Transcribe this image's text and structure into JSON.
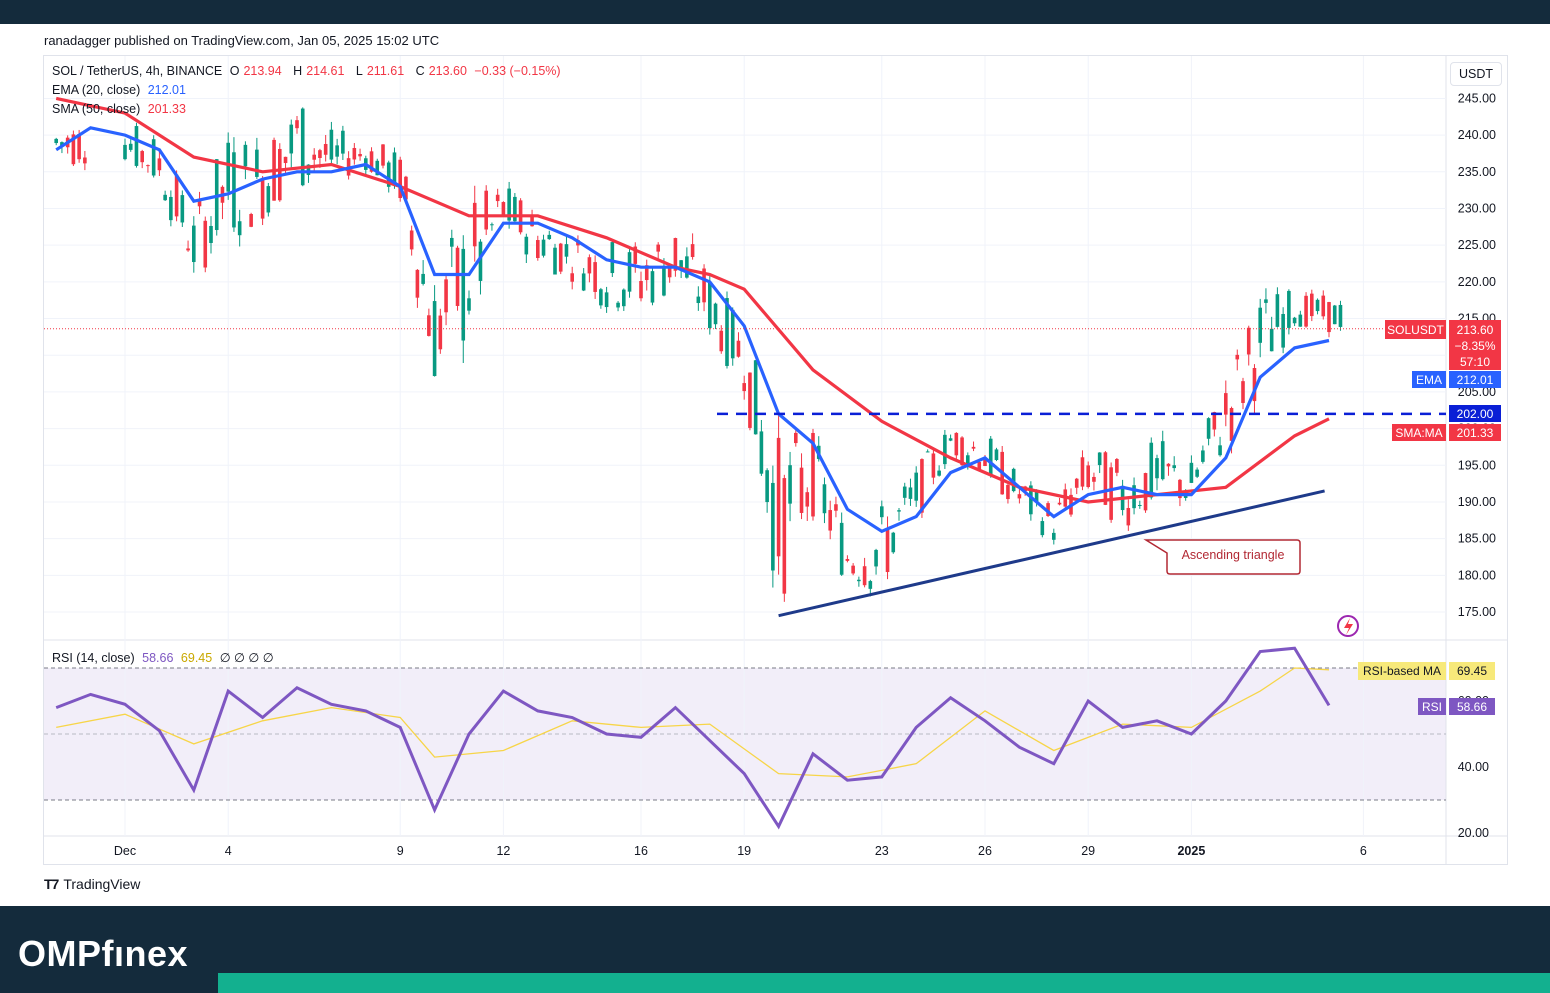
{
  "publisher": "ranadagger published on TradingView.com, Jan 05, 2025 15:02 UTC",
  "legend": {
    "symbol": "SOL / TetherUS, 4h, BINANCE",
    "ohlc": {
      "o_label": "O",
      "o": "213.94",
      "h_label": "H",
      "h": "214.61",
      "l_label": "L",
      "l": "211.61",
      "c_label": "C",
      "c": "213.60",
      "change": "−0.33 (−0.15%)"
    },
    "ema_label": "EMA (20, close)",
    "ema_value": "212.01",
    "sma_label": "SMA (50, close)",
    "sma_value": "201.33",
    "rsi_label": "RSI (14, close)",
    "rsi_value": "58.66",
    "rsi_ma_value": "69.45",
    "rsi_extra": "∅ ∅ ∅ ∅"
  },
  "currency": "USDT",
  "price_tags": {
    "symbol_tag": "SOLUSDT",
    "price": "213.60",
    "change_pct": "−8.35%",
    "countdown": "57:10",
    "ema_tag": "EMA",
    "ema": "212.01",
    "level": "202.00",
    "sma_tag": "SMA:MA",
    "sma": "201.33"
  },
  "rsi_tags": {
    "ma_label": "RSI-based MA",
    "ma": "69.45",
    "rsi_label": "RSI",
    "rsi": "58.66"
  },
  "annotation": "Ascending triangle",
  "tradingview_label": "TradingView",
  "brand": {
    "part1": "OMPf",
    "part2": "nex"
  },
  "colors": {
    "ema": "#2962ff",
    "sma": "#f23645",
    "up": "#089981",
    "down": "#f23645",
    "rsi": "#7e57c2",
    "rsi_ma": "#f7d548",
    "level": "#0a1fd6",
    "trend": "#1e3a8a"
  },
  "chart_data": {
    "type": "candlestick",
    "title": "SOL / TetherUS, 4h, BINANCE",
    "y_axis": {
      "ticks": [
        175,
        180,
        185,
        190,
        195,
        200,
        205,
        210,
        215,
        220,
        225,
        230,
        235,
        240,
        245
      ],
      "range": [
        173,
        248
      ]
    },
    "x_axis": {
      "ticks": [
        "Dec",
        "4",
        "9",
        "12",
        "16",
        "19",
        "23",
        "26",
        "29",
        "2025",
        "6"
      ]
    },
    "series": [
      {
        "name": "EMA (20, close)",
        "points": [
          [
            "Nov 29",
            238
          ],
          [
            "Nov 30",
            241
          ],
          [
            "Dec 1",
            240
          ],
          [
            "Dec 2",
            238
          ],
          [
            "Dec 3",
            231
          ],
          [
            "Dec 4",
            232
          ],
          [
            "Dec 5",
            234
          ],
          [
            "Dec 6",
            235
          ],
          [
            "Dec 7",
            235
          ],
          [
            "Dec 8",
            236
          ],
          [
            "Dec 9",
            233
          ],
          [
            "Dec 10",
            221
          ],
          [
            "Dec 11",
            221
          ],
          [
            "Dec 12",
            228
          ],
          [
            "Dec 13",
            228
          ],
          [
            "Dec 14",
            226
          ],
          [
            "Dec 15",
            223
          ],
          [
            "Dec 16",
            222
          ],
          [
            "Dec 17",
            222
          ],
          [
            "Dec 18",
            220
          ],
          [
            "Dec 19",
            214
          ],
          [
            "Dec 20",
            202
          ],
          [
            "Dec 21",
            198
          ],
          [
            "Dec 22",
            189
          ],
          [
            "Dec 23",
            186
          ],
          [
            "Dec 24",
            188
          ],
          [
            "Dec 25",
            194
          ],
          [
            "Dec 26",
            196
          ],
          [
            "Dec 27",
            192
          ],
          [
            "Dec 28",
            188
          ],
          [
            "Dec 29",
            191
          ],
          [
            "Dec 30",
            192
          ],
          [
            "Dec 31",
            191
          ],
          [
            "Jan 1",
            191
          ],
          [
            "Jan 2",
            196
          ],
          [
            "Jan 3",
            207
          ],
          [
            "Jan 4",
            211
          ],
          [
            "Jan 5",
            212.01
          ]
        ]
      },
      {
        "name": "SMA (50, close)",
        "points": [
          [
            "Nov 29",
            245
          ],
          [
            "Dec 1",
            243
          ],
          [
            "Dec 3",
            237
          ],
          [
            "Dec 5",
            235
          ],
          [
            "Dec 7",
            236
          ],
          [
            "Dec 9",
            233
          ],
          [
            "Dec 11",
            229
          ],
          [
            "Dec 13",
            229
          ],
          [
            "Dec 15",
            226
          ],
          [
            "Dec 17",
            222
          ],
          [
            "Dec 18",
            221
          ],
          [
            "Dec 19",
            219
          ],
          [
            "Dec 21",
            208
          ],
          [
            "Dec 23",
            201
          ],
          [
            "Dec 25",
            196
          ],
          [
            "Dec 27",
            192
          ],
          [
            "Dec 29",
            190
          ],
          [
            "Dec 31",
            191
          ],
          [
            "Jan 2",
            192
          ],
          [
            "Jan 4",
            199
          ],
          [
            "Jan 5",
            201.33
          ]
        ]
      }
    ],
    "price_range_series": {
      "name": "SOL/USDT 4h",
      "points": [
        [
          "Nov 29",
          235,
          243
        ],
        [
          "Dec 1",
          236,
          242
        ],
        [
          "Dec 2",
          232,
          240
        ],
        [
          "Dec 3",
          220,
          230
        ],
        [
          "Dec 4",
          225,
          241
        ],
        [
          "Dec 5",
          228,
          240
        ],
        [
          "Dec 6",
          232,
          246
        ],
        [
          "Dec 7",
          233,
          241
        ],
        [
          "Dec 8",
          235,
          240
        ],
        [
          "Dec 9",
          230,
          238
        ],
        [
          "Dec 10",
          205,
          222
        ],
        [
          "Dec 11",
          210,
          232
        ],
        [
          "Dec 12",
          226,
          234
        ],
        [
          "Dec 13",
          222,
          230
        ],
        [
          "Dec 14",
          220,
          227
        ],
        [
          "Dec 15",
          216,
          226
        ],
        [
          "Dec 16",
          215,
          226
        ],
        [
          "Dec 17",
          218,
          229
        ],
        [
          "Dec 18",
          212,
          222
        ],
        [
          "Dec 19",
          205,
          214
        ],
        [
          "Dec 20",
          175,
          200
        ],
        [
          "Dec 21",
          188,
          200
        ],
        [
          "Dec 22",
          178,
          187
        ],
        [
          "Dec 23",
          177,
          190
        ],
        [
          "Dec 24",
          187,
          195
        ],
        [
          "Dec 25",
          196,
          201
        ],
        [
          "Dec 26",
          193,
          200
        ],
        [
          "Dec 27",
          188,
          194
        ],
        [
          "Dec 28",
          184,
          190
        ],
        [
          "Dec 29",
          190,
          198
        ],
        [
          "Dec 30",
          186,
          196
        ],
        [
          "Dec 31",
          188,
          199
        ],
        [
          "Jan 1",
          189,
          196
        ],
        [
          "Jan 2",
          196,
          208
        ],
        [
          "Jan 3",
          205,
          219
        ],
        [
          "Jan 4",
          214,
          219
        ],
        [
          "Jan 5",
          213,
          218
        ]
      ]
    },
    "horizontal_level": 202,
    "trendline": {
      "from": [
        "Dec 20",
        174.5
      ],
      "to": [
        "Jan 4",
        191.5
      ]
    },
    "rsi": {
      "name": "RSI (14, close)",
      "ticks": [
        20,
        40,
        60
      ],
      "bands": [
        30,
        70
      ],
      "values": [
        [
          "Nov 29",
          58
        ],
        [
          "Nov 30",
          62
        ],
        [
          "Dec 1",
          59
        ],
        [
          "Dec 2",
          51
        ],
        [
          "Dec 3",
          33
        ],
        [
          "Dec 4",
          63
        ],
        [
          "Dec 5",
          55
        ],
        [
          "Dec 6",
          64
        ],
        [
          "Dec 7",
          59
        ],
        [
          "Dec 8",
          57
        ],
        [
          "Dec 9",
          52
        ],
        [
          "Dec 10",
          27
        ],
        [
          "Dec 11",
          50
        ],
        [
          "Dec 12",
          63
        ],
        [
          "Dec 13",
          57
        ],
        [
          "Dec 14",
          55
        ],
        [
          "Dec 15",
          50
        ],
        [
          "Dec 16",
          49
        ],
        [
          "Dec 17",
          58
        ],
        [
          "Dec 18",
          48
        ],
        [
          "Dec 19",
          38
        ],
        [
          "Dec 20",
          22
        ],
        [
          "Dec 21",
          44
        ],
        [
          "Dec 22",
          36
        ],
        [
          "Dec 23",
          37
        ],
        [
          "Dec 24",
          52
        ],
        [
          "Dec 25",
          61
        ],
        [
          "Dec 26",
          54
        ],
        [
          "Dec 27",
          46
        ],
        [
          "Dec 28",
          41
        ],
        [
          "Dec 29",
          60
        ],
        [
          "Dec 30",
          52
        ],
        [
          "Dec 31",
          54
        ],
        [
          "Jan 1",
          50
        ],
        [
          "Jan 2",
          60
        ],
        [
          "Jan 3",
          75
        ],
        [
          "Jan 4",
          76
        ],
        [
          "Jan 5",
          58.66
        ]
      ],
      "ma_values": [
        [
          "Nov 29",
          52
        ],
        [
          "Dec 1",
          56
        ],
        [
          "Dec 3",
          47
        ],
        [
          "Dec 5",
          54
        ],
        [
          "Dec 7",
          58
        ],
        [
          "Dec 9",
          55
        ],
        [
          "Dec 10",
          43
        ],
        [
          "Dec 12",
          45
        ],
        [
          "Dec 14",
          54
        ],
        [
          "Dec 16",
          52
        ],
        [
          "Dec 18",
          53
        ],
        [
          "Dec 20",
          38
        ],
        [
          "Dec 22",
          37
        ],
        [
          "Dec 24",
          41
        ],
        [
          "Dec 26",
          57
        ],
        [
          "Dec 28",
          45
        ],
        [
          "Dec 30",
          53
        ],
        [
          "Jan 1",
          52
        ],
        [
          "Jan 3",
          63
        ],
        [
          "Jan 4",
          70
        ],
        [
          "Jan 5",
          69.45
        ]
      ]
    }
  }
}
